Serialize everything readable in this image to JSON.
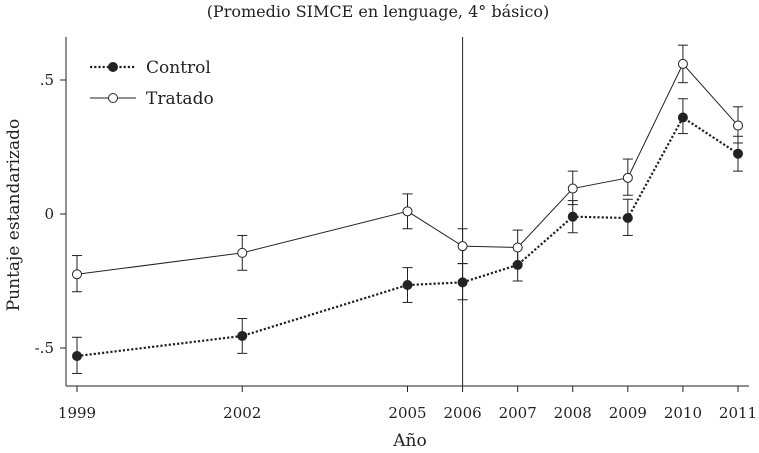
{
  "chart_data": {
    "type": "line",
    "subtitle": "(Promedio SIMCE en lenguage, 4° básico)",
    "xlabel": "Año",
    "ylabel": "Puntaje estandarizado",
    "x": [
      1999,
      2002,
      2005,
      2006,
      2007,
      2008,
      2009,
      2010,
      2011
    ],
    "x_tick_labels": [
      "1999",
      "2002",
      "2005",
      "2006",
      "2007",
      "2008",
      "2009",
      "2010",
      "2011"
    ],
    "y_ticks": [
      -0.5,
      0,
      0.5
    ],
    "y_tick_labels": [
      "-.5",
      "0",
      ".5"
    ],
    "ylim": [
      -0.64,
      0.66
    ],
    "vline_x": 2006,
    "grid": false,
    "legend_position": "top-left",
    "series": [
      {
        "name": "Control",
        "style": "dotted",
        "marker": "filled-circle",
        "color": "#222222",
        "values": [
          -0.53,
          -0.455,
          -0.265,
          -0.255,
          -0.19,
          -0.01,
          -0.015,
          0.36,
          0.225
        ],
        "err_low": [
          -0.595,
          -0.52,
          -0.33,
          -0.32,
          -0.25,
          -0.07,
          -0.08,
          0.3,
          0.16
        ],
        "err_high": [
          -0.46,
          -0.39,
          -0.2,
          -0.185,
          -0.125,
          0.05,
          0.055,
          0.43,
          0.29
        ]
      },
      {
        "name": "Tratado",
        "style": "solid",
        "marker": "open-circle",
        "color": "#222222",
        "values": [
          -0.225,
          -0.145,
          0.01,
          -0.12,
          -0.125,
          0.095,
          0.135,
          0.56,
          0.33
        ],
        "err_low": [
          -0.29,
          -0.21,
          -0.055,
          -0.185,
          -0.185,
          0.035,
          0.07,
          0.49,
          0.265
        ],
        "err_high": [
          -0.155,
          -0.08,
          0.075,
          -0.055,
          -0.06,
          0.16,
          0.205,
          0.63,
          0.4
        ]
      }
    ]
  }
}
